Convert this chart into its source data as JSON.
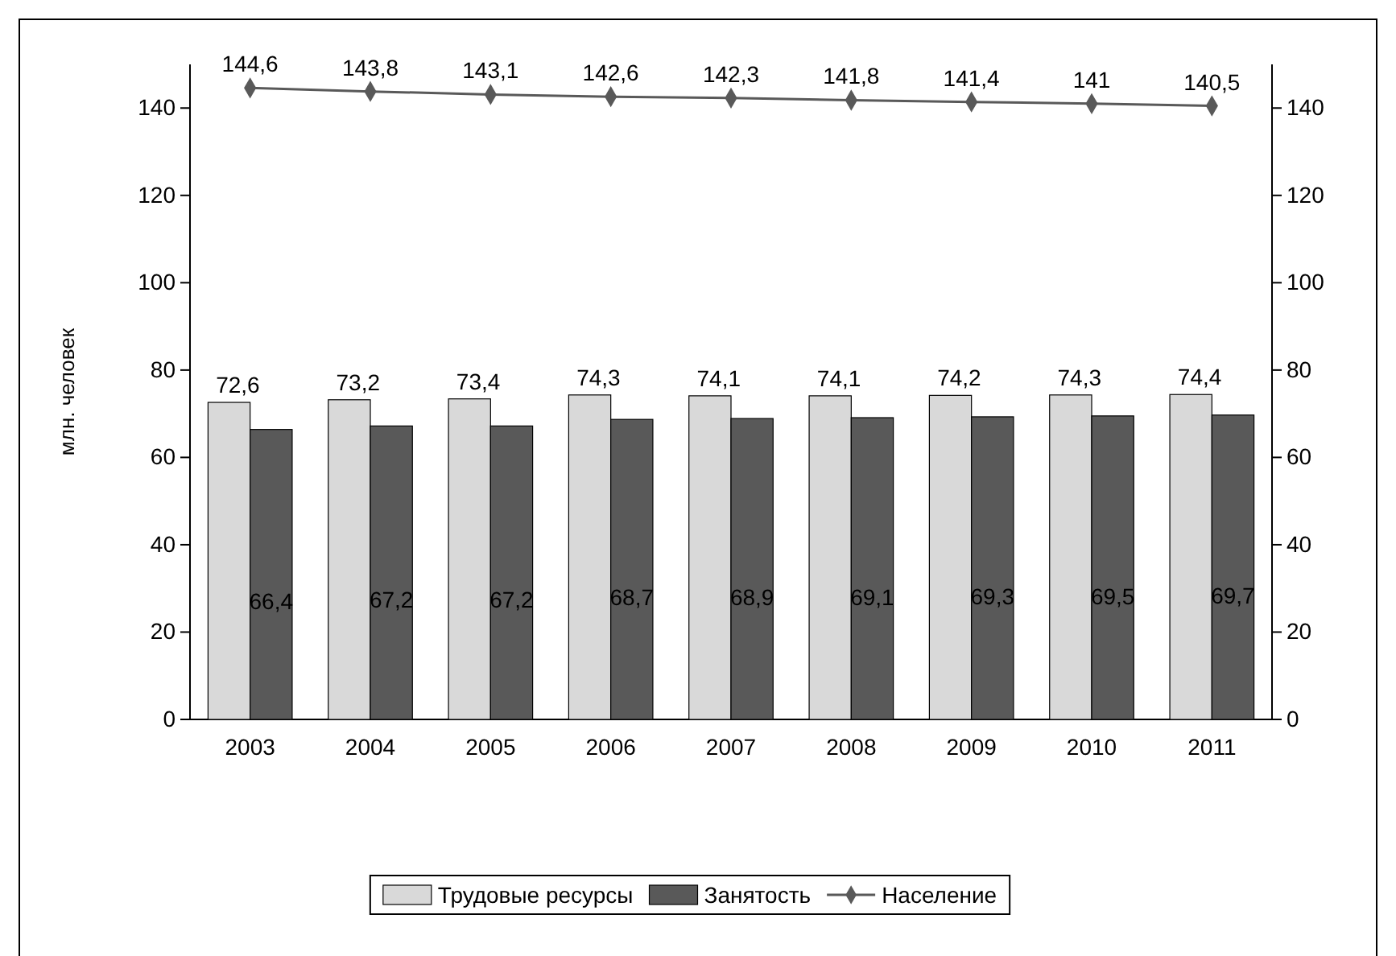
{
  "chart_data": {
    "type": "bar",
    "ylabel": "млн. человек",
    "categories": [
      "2003",
      "2004",
      "2005",
      "2006",
      "2007",
      "2008",
      "2009",
      "2010",
      "2011"
    ],
    "series": [
      {
        "name": "Трудовые ресурсы",
        "color": "#d9d9d9",
        "values": [
          72.6,
          73.2,
          73.4,
          74.3,
          74.1,
          74.1,
          74.2,
          74.3,
          74.4
        ],
        "value_labels": [
          "72,6",
          "73,2",
          "73,4",
          "74,3",
          "74,1",
          "74,1",
          "74,2",
          "74,3",
          "74,4"
        ]
      },
      {
        "name": "Занятость",
        "color": "#595959",
        "values": [
          66.4,
          67.2,
          67.2,
          68.7,
          68.9,
          69.1,
          69.3,
          69.5,
          69.7
        ],
        "value_labels": [
          "66,4",
          "67,2",
          "67,2",
          "68,7",
          "68,9",
          "69,1",
          "69,3",
          "69,5",
          "69,7"
        ]
      },
      {
        "name": "Население",
        "type": "line",
        "color": "#595959",
        "values": [
          144.6,
          143.8,
          143.1,
          142.6,
          142.3,
          141.8,
          141.4,
          141,
          140.5
        ],
        "value_labels": [
          "144,6",
          "143,8",
          "143,1",
          "142,6",
          "142,3",
          "141,8",
          "141,4",
          "141",
          "140,5"
        ]
      }
    ],
    "ylim": [
      0,
      150
    ],
    "yticks": [
      0,
      20,
      40,
      60,
      80,
      100,
      120,
      140
    ],
    "y2lim": [
      0,
      150
    ],
    "y2ticks": [
      0,
      20,
      40,
      60,
      80,
      100,
      120,
      140
    ],
    "legend": "bottom",
    "grid": false,
    "marker": "diamond",
    "line_style": "solid"
  }
}
